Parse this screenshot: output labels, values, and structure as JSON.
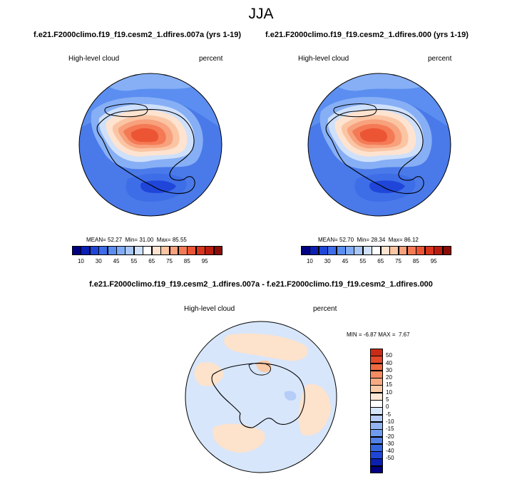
{
  "season": "JJA",
  "variable": "High-level cloud",
  "units": "percent",
  "panels": [
    {
      "case_title": "f.e21.F2000climo.f19_f19.cesm2_1.dfires.007a (yrs 1-19)",
      "mean": "52.27",
      "min": "31.00",
      "max": "85.55"
    },
    {
      "case_title": "f.e21.F2000climo.f19_f19.cesm2_1.dfires.000 (yrs 1-19)",
      "mean": "52.70",
      "min": "28.34",
      "max": "86.12"
    }
  ],
  "labels": {
    "mean_label": "MEAN=",
    "min_label": "Min=",
    "max_label": "Max=",
    "diff_min_label": "MIN =",
    "diff_max_label": "MAX ="
  },
  "diff_panel": {
    "title": "f.e21.F2000climo.f19_f19.cesm2_1.dfires.007a - f.e21.F2000climo.f19_f19.cesm2_1.dfires.000",
    "min": "-6.87",
    "max": "7.67"
  },
  "colorbar_main": {
    "colors": [
      "#000080",
      "#0b1fb0",
      "#1f46d9",
      "#3e6de8",
      "#5b8ef0",
      "#82acf5",
      "#a9c8f8",
      "#d0e1fb",
      "#ffffff",
      "#fde3d0",
      "#fbc5a4",
      "#f8a17d",
      "#f47a55",
      "#ec5534",
      "#d8351e",
      "#b81d10",
      "#8a0c06"
    ],
    "tick_labels": [
      "10",
      "30",
      "45",
      "55",
      "65",
      "75",
      "85",
      "95"
    ]
  },
  "colorbar_diff": {
    "colors": [
      "#000080",
      "#0b1fb0",
      "#1f46d9",
      "#3566e0",
      "#5282e8",
      "#6f9bee",
      "#92b4f3",
      "#b5cdf7",
      "#d6e6fb",
      "#ffffff",
      "#fde6d3",
      "#fbcaa8",
      "#f8ab83",
      "#f58b60",
      "#ef6a40",
      "#e3492a",
      "#c92c16"
    ],
    "tick_labels": [
      "50",
      "40",
      "30",
      "20",
      "15",
      "10",
      "5",
      "0",
      "-5",
      "-10",
      "-15",
      "-20",
      "-30",
      "-40",
      "-50"
    ]
  },
  "map_palette": {
    "ocean_dark": "#3f6fe6",
    "ocean_mid": "#5b8ef0",
    "ocean_light": "#87aff5",
    "pale": "#cfe0fb",
    "white": "#ffffff",
    "warm_1": "#fbc5a4",
    "warm_2": "#f8a17d",
    "warm_3": "#f47a55",
    "warm_4": "#ec5534",
    "diff_base": "#d7e6fb",
    "diff_warm": "#fde2cc"
  }
}
